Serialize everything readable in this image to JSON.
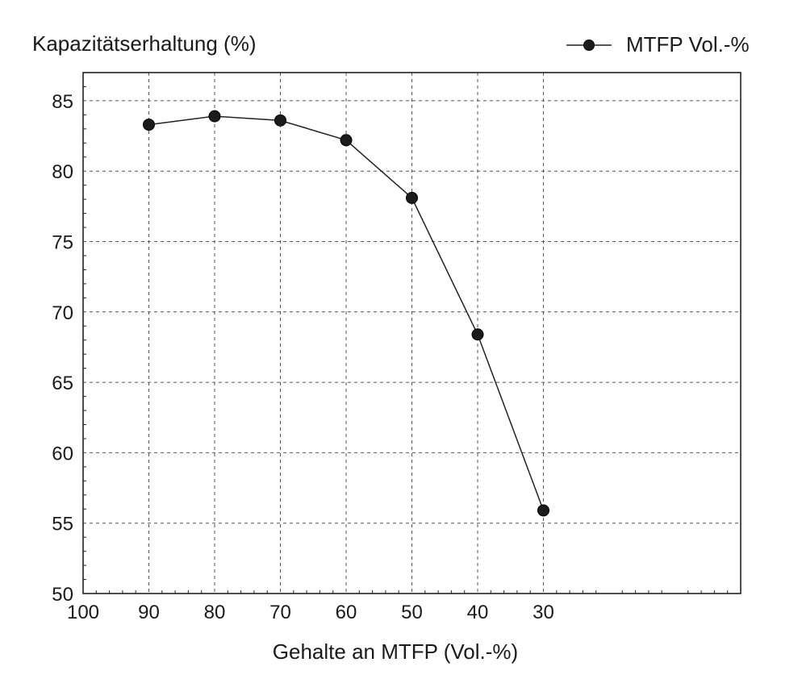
{
  "chart_data": {
    "type": "line",
    "ylabel": "Kapazitätserhaltung  (%)",
    "xlabel": "Gehalte an MTFP (Vol.-%)",
    "legend": {
      "label": "MTFP Vol.-%",
      "position": "top-right"
    },
    "x_reversed": true,
    "xlim": [
      100,
      0
    ],
    "ylim": [
      50,
      87
    ],
    "x_ticks": [
      100,
      90,
      80,
      70,
      60,
      50,
      40,
      30
    ],
    "y_ticks": [
      50,
      55,
      60,
      65,
      70,
      75,
      80,
      85
    ],
    "grid": true,
    "series": [
      {
        "name": "MTFP Vol.-%",
        "x": [
          90,
          80,
          70,
          60,
          50,
          40,
          30
        ],
        "y": [
          83.3,
          83.9,
          83.6,
          82.2,
          78.1,
          68.4,
          55.9
        ]
      }
    ]
  }
}
